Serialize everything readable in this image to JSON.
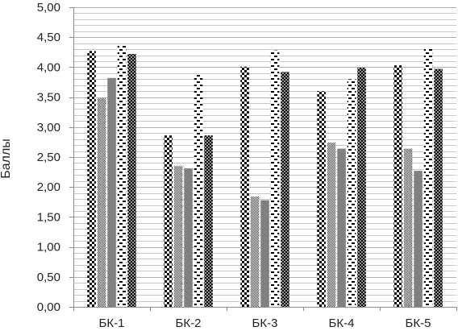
{
  "chart_data": {
    "type": "bar",
    "title": "",
    "xlabel": "",
    "ylabel": "Баллы",
    "ylim": [
      0,
      5
    ],
    "ytick_step": 0.5,
    "ytick_labels": [
      "0,00",
      "0,50",
      "1,00",
      "1,50",
      "2,00",
      "2,50",
      "3,00",
      "3,50",
      "4,00",
      "4,50",
      "5,00"
    ],
    "grid": true,
    "legend": "none",
    "categories": [
      "БК-1",
      "БК-2",
      "БК-3",
      "БК-4",
      "БК-5"
    ],
    "series": [
      {
        "pattern": "checker-large",
        "values": [
          4.27,
          2.86,
          4.01,
          3.6,
          4.03
        ]
      },
      {
        "pattern": "checker-fine",
        "values": [
          3.48,
          2.35,
          1.84,
          2.74,
          2.64
        ]
      },
      {
        "pattern": "solid-gray",
        "values": [
          3.82,
          2.31,
          1.78,
          2.64,
          2.27
        ]
      },
      {
        "pattern": "dashes",
        "values": [
          4.38,
          3.87,
          4.28,
          3.8,
          4.31
        ]
      },
      {
        "pattern": "dots-dense",
        "values": [
          4.22,
          2.86,
          3.92,
          3.99,
          3.97
        ]
      }
    ],
    "colors": {
      "grid": "#c8c8c8",
      "axis": "#8c8c8c",
      "solid_gray": "#808080",
      "ink": "#000000"
    }
  }
}
